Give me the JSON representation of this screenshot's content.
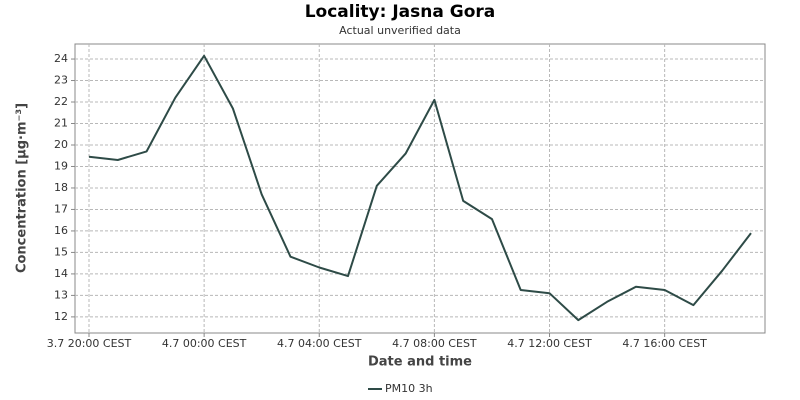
{
  "chart_data": {
    "type": "line",
    "title": "Locality: Jasna Gora",
    "subtitle": "Actual unverified data",
    "x_label": "Date and time",
    "y_label": "Concentration [µg·m⁻³]",
    "categories": [
      "3.7 20:00 CEST",
      null,
      null,
      null,
      "4.7 00:00 CEST",
      null,
      null,
      null,
      "4.7 04:00 CEST",
      null,
      null,
      null,
      "4.7 08:00 CEST",
      null,
      null,
      null,
      "4.7 12:00 CEST",
      null,
      null,
      null,
      "4.7 16:00 CEST",
      null,
      null,
      null
    ],
    "series": [
      {
        "name": "PM10 3h",
        "color": "#2e4b47",
        "values": [
          19.45,
          19.3,
          19.7,
          22.2,
          24.15,
          21.7,
          17.7,
          14.8,
          14.3,
          13.9,
          18.1,
          19.6,
          22.1,
          17.4,
          16.55,
          13.25,
          13.1,
          11.85,
          12.7,
          13.4,
          13.25,
          12.55,
          14.15,
          15.9
        ]
      }
    ],
    "ylim": [
      11.25,
      24.7
    ],
    "yticks": [
      12,
      13,
      14,
      15,
      16,
      17,
      18,
      19,
      20,
      21,
      22,
      23,
      24
    ],
    "grid": true,
    "legend": "bottom"
  }
}
